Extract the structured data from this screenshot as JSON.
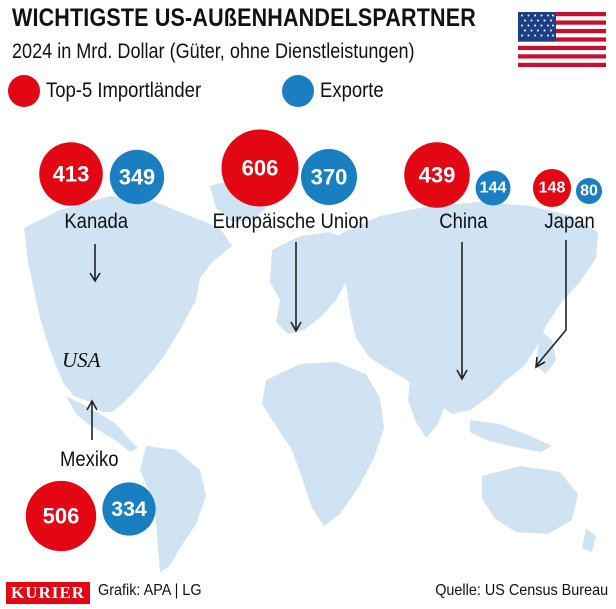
{
  "header": {
    "title": "WICHTIGSTE US-AUßENHANDELSPARTNER",
    "subtitle": "2024 in Mrd. Dollar (Güter, ohne Dienstleistungen)"
  },
  "legend": {
    "imports_label": "Top-5 Importländer",
    "exports_label": "Exporte"
  },
  "colors": {
    "imports": "#e30613",
    "exports": "#1a7fc1",
    "land": "#cfe3f3",
    "arrow": "#222222",
    "text_on_bubble": "#ffffff"
  },
  "map_label": "USA",
  "chart_data": {
    "type": "bubble-map",
    "title": "WICHTIGSTE US-AUßENHANDELSPARTNER",
    "subtitle": "2024 in Mrd. Dollar (Güter, ohne Dienstleistungen)",
    "categories": [
      "Kanada",
      "Europäische Union",
      "China",
      "Japan",
      "Mexiko"
    ],
    "series": [
      {
        "name": "Top-5 Importländer",
        "values": [
          413,
          606,
          439,
          148,
          506
        ]
      },
      {
        "name": "Exporte",
        "values": [
          349,
          370,
          144,
          80,
          334
        ]
      }
    ]
  },
  "footer": {
    "brand": "KURIER",
    "credit": "Grafik: APA | LG",
    "source": "Quelle: US Census Bureau"
  }
}
